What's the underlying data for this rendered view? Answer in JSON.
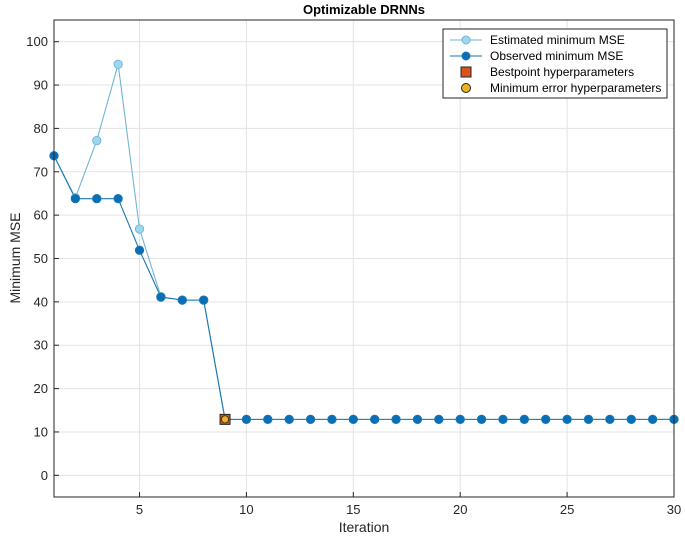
{
  "chart_data": {
    "type": "line",
    "title": "Optimizable DRNNs",
    "xlabel": "Iteration",
    "ylabel": "Minimum MSE",
    "xlim": [
      1,
      30
    ],
    "ylim": [
      -5,
      105
    ],
    "xticks": [
      5,
      10,
      15,
      20,
      25,
      30
    ],
    "yticks": [
      0,
      10,
      20,
      30,
      40,
      50,
      60,
      70,
      80,
      90,
      100
    ],
    "grid": true,
    "legend_position": "top-right",
    "series": [
      {
        "name": "Estimated minimum MSE",
        "color": "#6fb6d6",
        "marker_fill": "#9fd6ee",
        "x": [
          1,
          2,
          3,
          4,
          5,
          6,
          7,
          8,
          9,
          10,
          11,
          12,
          13,
          14,
          15,
          16,
          17,
          18,
          19,
          20,
          21,
          22,
          23,
          24,
          25,
          26,
          27,
          28,
          29,
          30
        ],
        "values": [
          73.7,
          64.0,
          77.2,
          94.8,
          56.8,
          41.2,
          40.4,
          40.4,
          12.9,
          12.9,
          12.9,
          12.9,
          12.9,
          12.9,
          12.9,
          12.9,
          12.9,
          12.9,
          12.9,
          12.9,
          12.9,
          12.9,
          12.9,
          12.9,
          12.9,
          12.9,
          12.9,
          12.9,
          12.9,
          12.9
        ]
      },
      {
        "name": "Observed minimum MSE",
        "color": "#1a78b4",
        "marker_fill": "#0a6eb4",
        "x": [
          1,
          2,
          3,
          4,
          5,
          6,
          7,
          8,
          9,
          10,
          11,
          12,
          13,
          14,
          15,
          16,
          17,
          18,
          19,
          20,
          21,
          22,
          23,
          24,
          25,
          26,
          27,
          28,
          29,
          30
        ],
        "values": [
          73.7,
          63.8,
          63.8,
          63.8,
          51.9,
          41.1,
          40.4,
          40.4,
          12.9,
          12.9,
          12.9,
          12.9,
          12.9,
          12.9,
          12.9,
          12.9,
          12.9,
          12.9,
          12.9,
          12.9,
          12.9,
          12.9,
          12.9,
          12.9,
          12.9,
          12.9,
          12.9,
          12.9,
          12.9,
          12.9
        ]
      }
    ],
    "points": [
      {
        "name": "Bestpoint hyperparameters",
        "x": 9,
        "y": 12.9,
        "marker": "square",
        "color": "#d9541a"
      },
      {
        "name": "Minimum error hyperparameters",
        "x": 9,
        "y": 12.9,
        "marker": "circle",
        "color": "#edb120"
      }
    ]
  }
}
